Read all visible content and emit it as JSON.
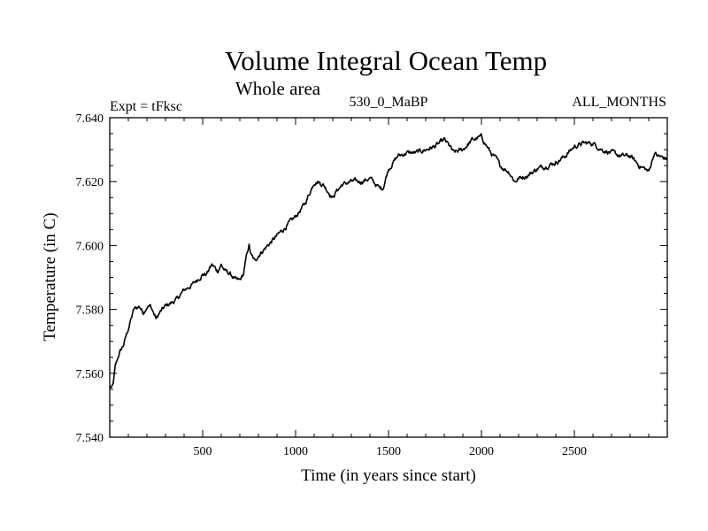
{
  "chart_data": {
    "type": "line",
    "title": "Volume Integral Ocean Temp",
    "subtitle": "Whole area",
    "left_label": "Expt = tFksc",
    "center_label": "530_0_MaBP",
    "right_label": "ALL_MONTHS",
    "xlabel": "Time (in years since start)",
    "ylabel": "Temperature (in C)",
    "xlim": [
      0,
      3000
    ],
    "ylim": [
      7.54,
      7.64
    ],
    "xticks": [
      500,
      1000,
      1500,
      2000,
      2500
    ],
    "xtick_labels": [
      "500",
      "1000",
      "1500",
      "2000",
      "2500"
    ],
    "yticks": [
      7.54,
      7.56,
      7.58,
      7.6,
      7.62,
      7.64
    ],
    "ytick_labels": [
      "7.540",
      "7.560",
      "7.580",
      "7.600",
      "7.620",
      "7.640"
    ],
    "grid": false,
    "series": [
      {
        "name": "Volume Integral Ocean Temp",
        "color": "#000000",
        "x": [
          0,
          10,
          20,
          30,
          50,
          75,
          100,
          130,
          160,
          180,
          200,
          220,
          250,
          270,
          300,
          330,
          360,
          400,
          450,
          500,
          520,
          550,
          580,
          600,
          620,
          650,
          680,
          700,
          720,
          740,
          750,
          760,
          780,
          800,
          850,
          900,
          950,
          1000,
          1050,
          1080,
          1100,
          1120,
          1150,
          1200,
          1220,
          1250,
          1300,
          1350,
          1400,
          1450,
          1470,
          1500,
          1550,
          1600,
          1650,
          1700,
          1750,
          1800,
          1830,
          1850,
          1900,
          1950,
          2000,
          2050,
          2080,
          2100,
          2150,
          2180,
          2200,
          2250,
          2300,
          2350,
          2400,
          2450,
          2500,
          2550,
          2600,
          2650,
          2700,
          2750,
          2800,
          2850,
          2880,
          2900,
          2930,
          2950,
          3000
        ],
        "values": [
          7.556,
          7.555,
          7.557,
          7.562,
          7.566,
          7.569,
          7.574,
          7.58,
          7.581,
          7.579,
          7.581,
          7.581,
          7.577,
          7.579,
          7.581,
          7.582,
          7.583,
          7.586,
          7.588,
          7.591,
          7.591,
          7.594,
          7.592,
          7.594,
          7.592,
          7.591,
          7.589,
          7.589,
          7.591,
          7.598,
          7.6,
          7.597,
          7.595,
          7.597,
          7.6,
          7.603,
          7.606,
          7.609,
          7.613,
          7.617,
          7.62,
          7.62,
          7.619,
          7.615,
          7.617,
          7.619,
          7.62,
          7.62,
          7.621,
          7.618,
          7.618,
          7.624,
          7.628,
          7.629,
          7.629,
          7.63,
          7.631,
          7.633,
          7.631,
          7.629,
          7.63,
          7.633,
          7.634,
          7.629,
          7.627,
          7.625,
          7.623,
          7.62,
          7.621,
          7.622,
          7.624,
          7.625,
          7.626,
          7.628,
          7.631,
          7.632,
          7.632,
          7.63,
          7.629,
          7.628,
          7.628,
          7.625,
          7.624,
          7.623,
          7.629,
          7.628,
          7.627
        ]
      }
    ]
  }
}
